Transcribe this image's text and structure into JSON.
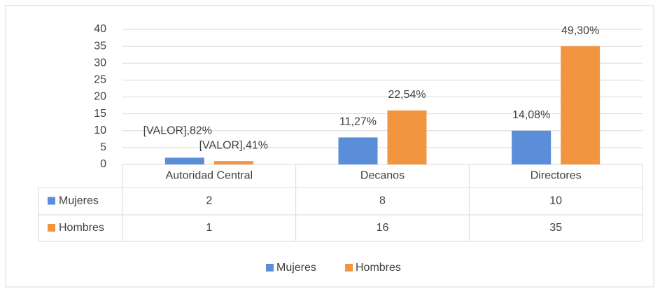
{
  "chart_data": {
    "type": "bar",
    "categories": [
      "Autoridad Central",
      "Decanos",
      "Directores"
    ],
    "series": [
      {
        "name": "Mujeres",
        "color": "#5a8ed8",
        "values": [
          2,
          8,
          10
        ],
        "data_labels": [
          "[VALOR],82%",
          "11,27%",
          "14,08%"
        ]
      },
      {
        "name": "Hombres",
        "color": "#f19540",
        "values": [
          1,
          16,
          35
        ],
        "data_labels": [
          "[VALOR],41%",
          "22,54%",
          "49,30%"
        ]
      }
    ],
    "ylim": [
      0,
      40
    ],
    "yticks": [
      0,
      5,
      10,
      15,
      20,
      25,
      30,
      35,
      40
    ],
    "grid": true,
    "legend": "bottom",
    "data_table": true
  }
}
